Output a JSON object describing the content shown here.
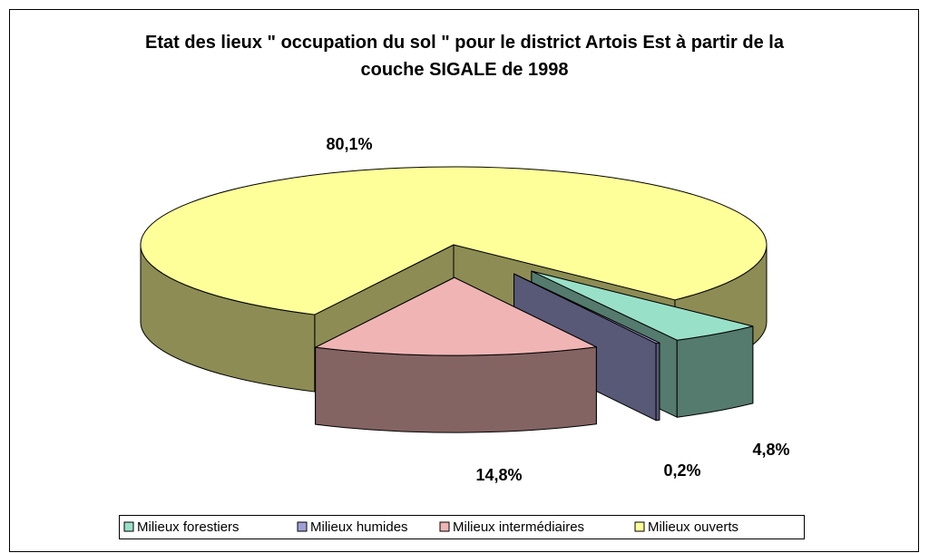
{
  "chart_data": {
    "type": "pie3d",
    "title": "Etat des lieux \" occupation du sol \" pour le district Artois Est à partir de la couche SIGALE de 1998",
    "categories": [
      "Milieux forestiers",
      "Milieux humides",
      "Milieux intermédiaires",
      "Milieux ouverts"
    ],
    "values": [
      4.8,
      0.2,
      14.8,
      80.1
    ],
    "value_labels": [
      "4,8%",
      "0,2%",
      "14,8%",
      "80,1%"
    ],
    "colors": [
      "#99e0c8",
      "#a0a0d8",
      "#f0b4b4",
      "#ffff99"
    ],
    "legend": "bottom"
  }
}
